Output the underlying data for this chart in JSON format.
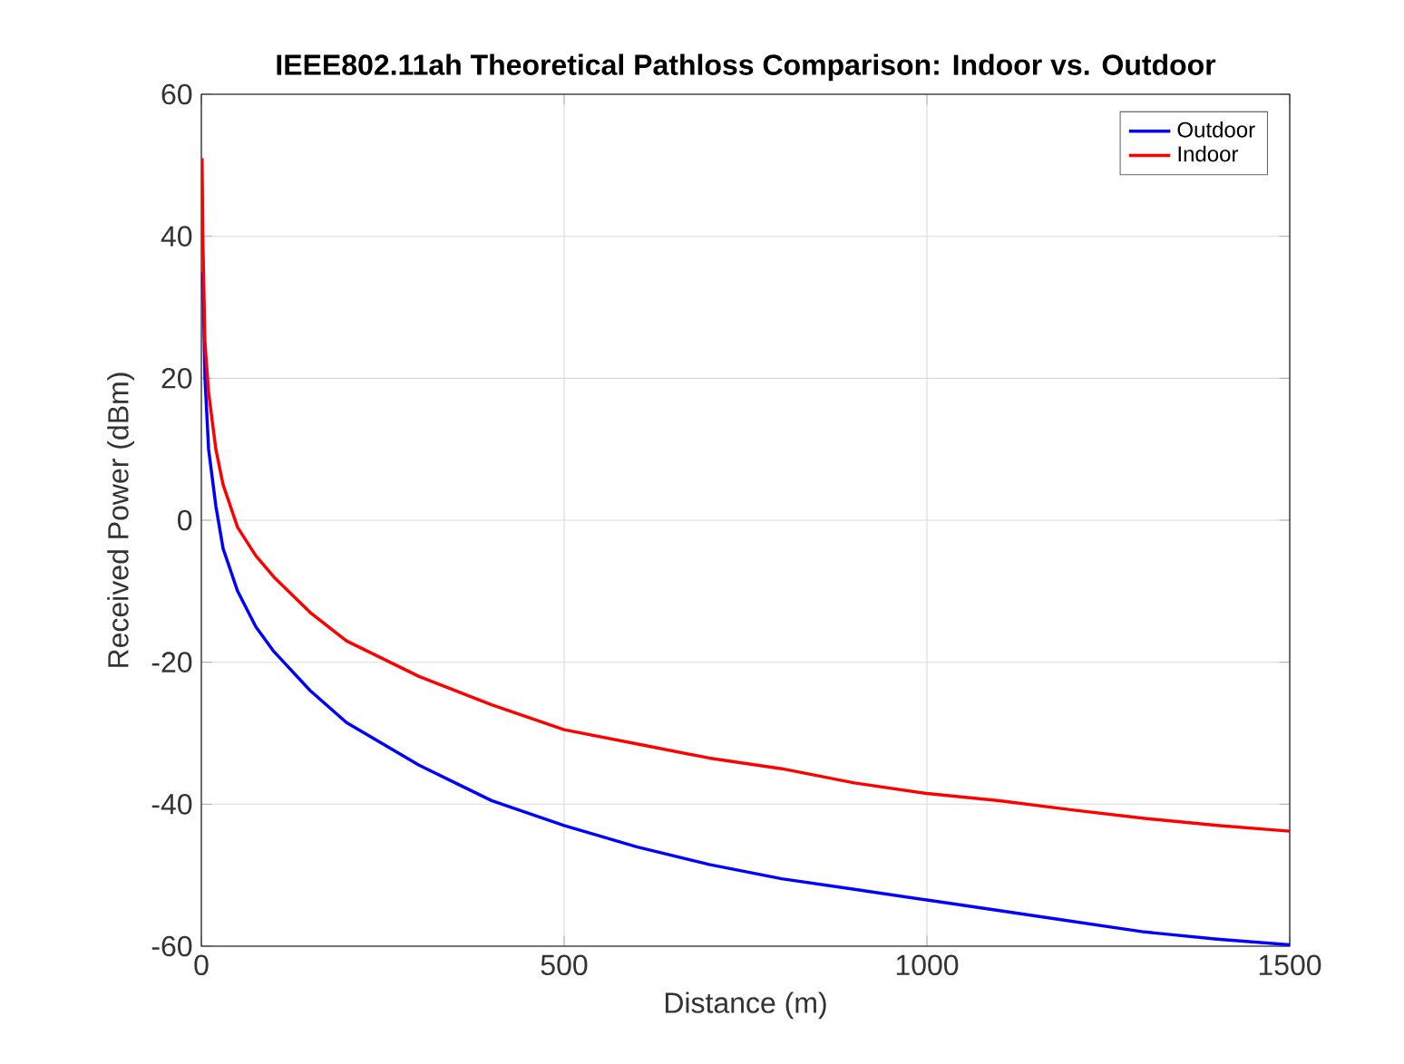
{
  "chart_data": {
    "type": "line",
    "title": "IEEE802.11ah Theoretical Pathloss Comparison: Indoor vs. Outdoor",
    "xlabel": "Distance (m)",
    "ylabel": "Received Power (dBm)",
    "xlim": [
      0,
      1500
    ],
    "ylim": [
      -60,
      60
    ],
    "xticks": [
      0,
      500,
      1000,
      1500
    ],
    "yticks": [
      -60,
      -40,
      -20,
      0,
      20,
      40,
      60
    ],
    "grid": true,
    "legend": "top right",
    "series": [
      {
        "name": "Outdoor",
        "color": "#0000ff",
        "x": [
          2,
          5,
          10,
          20,
          30,
          50,
          75,
          100,
          150,
          200,
          300,
          400,
          500,
          600,
          700,
          800,
          900,
          1000,
          1100,
          1200,
          1300,
          1400,
          1500
        ],
        "values": [
          35,
          20,
          10,
          2,
          -4,
          -10,
          -15,
          -18.5,
          -24,
          -28.5,
          -34.5,
          -39.5,
          -43,
          -46,
          -48.5,
          -50.5,
          -52,
          -53.5,
          -55,
          -56.5,
          -58,
          -59,
          -59.8
        ]
      },
      {
        "name": "Indoor",
        "color": "#ff0000",
        "x": [
          1,
          2,
          5,
          10,
          20,
          30,
          50,
          75,
          100,
          150,
          200,
          300,
          400,
          500,
          600,
          700,
          800,
          900,
          1000,
          1100,
          1200,
          1300,
          1400,
          1500
        ],
        "values": [
          51,
          40,
          25,
          18,
          10,
          5,
          -1,
          -5,
          -8,
          -13,
          -17,
          -22,
          -26,
          -29.5,
          -31.5,
          -33.5,
          -35,
          -37,
          -38.5,
          -39.5,
          -40.8,
          -42,
          -43,
          -43.8
        ]
      }
    ]
  }
}
